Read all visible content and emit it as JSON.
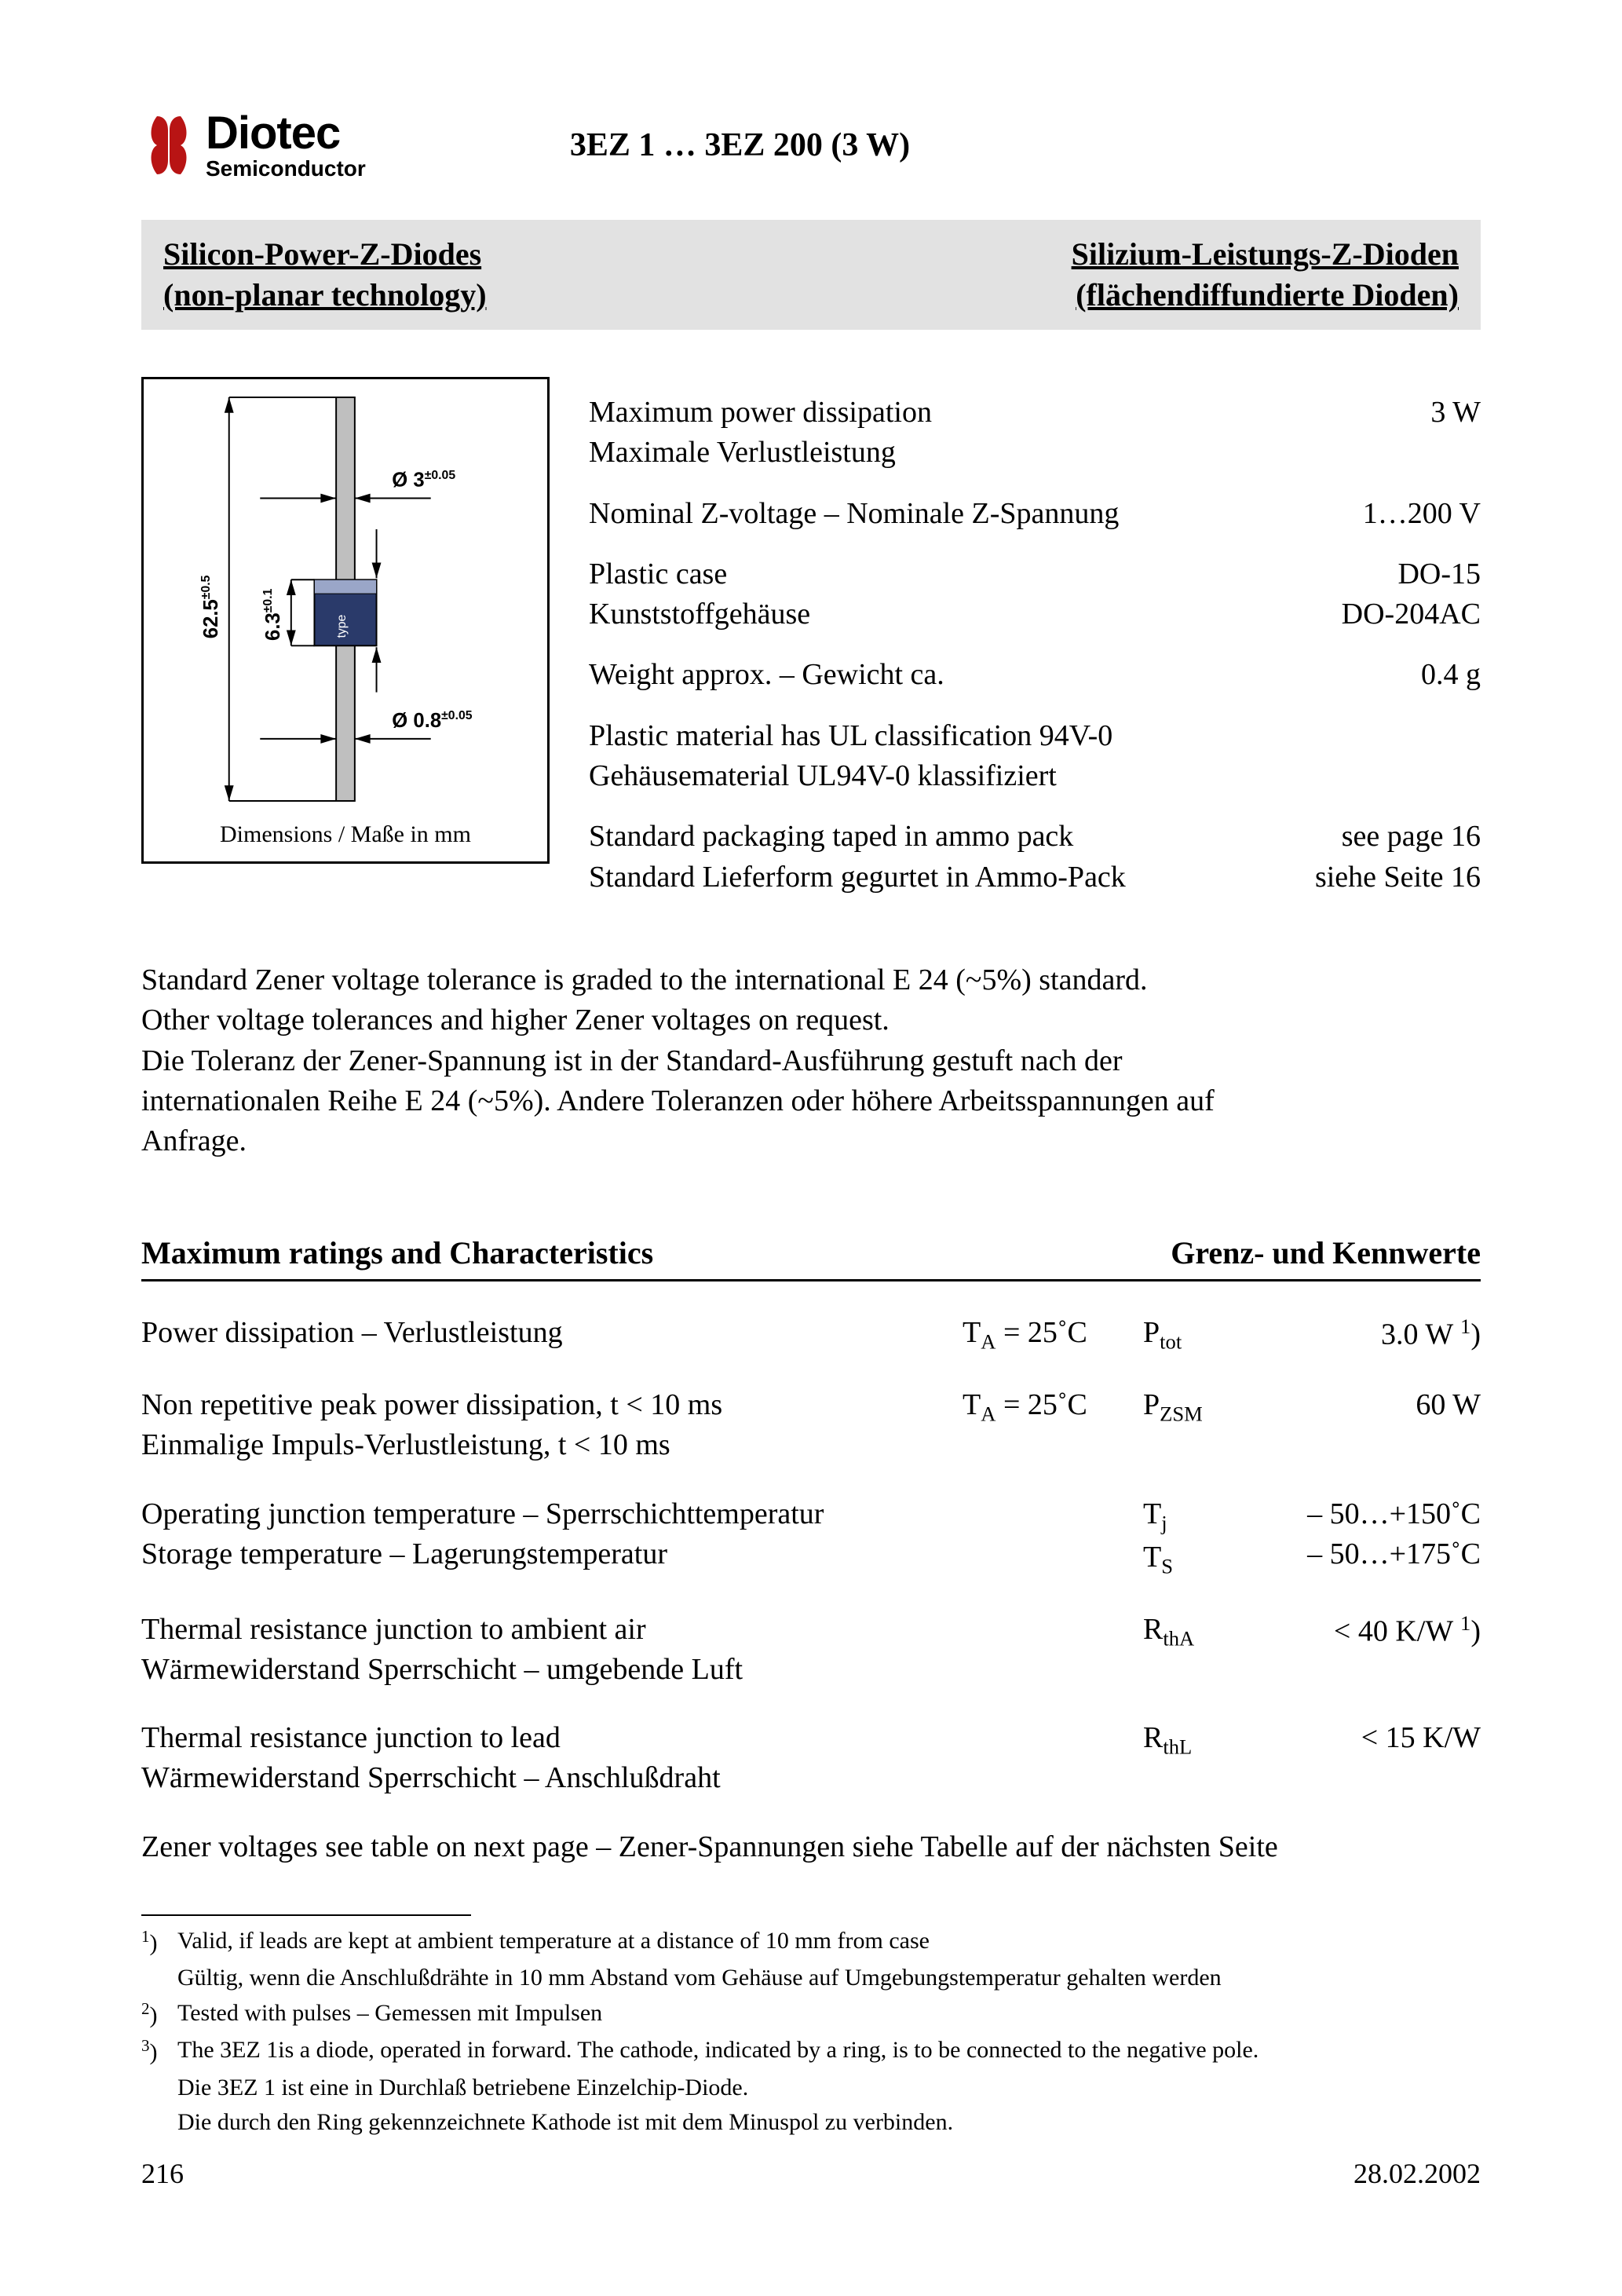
{
  "logo": {
    "name": "Diotec",
    "sub": "Semiconductor",
    "glyph_color": "#b81414"
  },
  "doc_title": "3EZ 1 … 3EZ 200 (3 W)",
  "gray_bar": {
    "left_line1": "Silicon-Power-Z-Diodes",
    "left_line2": "(non-planar technology)",
    "right_line1": "Silizium-Leistungs-Z-Dioden",
    "right_line2": "(flächendiffundierte Dioden)"
  },
  "dimensions": {
    "caption": "Dimensions / Maße in mm",
    "overall_length": "62.5",
    "overall_tol": "±0.5",
    "body_length": "6.3",
    "body_tol": "±0.1",
    "top_dia": "Ø 3",
    "top_tol": "±0.05",
    "lead_dia": "Ø 0.8",
    "lead_tol": "±0.05",
    "type_txt": "type"
  },
  "specs": [
    {
      "en": "Maximum power dissipation",
      "de": "Maximale Verlustleistung",
      "val": "3 W"
    },
    {
      "en": "Nominal Z-voltage – Nominale Z-Spannung",
      "de": "",
      "val": "1…200 V"
    },
    {
      "en": "Plastic case",
      "de": "Kunststoffgehäuse",
      "val_en": "DO-15",
      "val_de": "DO-204AC"
    },
    {
      "en": "Weight approx. – Gewicht ca.",
      "de": "",
      "val": "0.4 g"
    },
    {
      "en": "Plastic material has UL classification 94V-0",
      "de": "Gehäusematerial UL94V-0 klassifiziert",
      "val": ""
    },
    {
      "en": "Standard packaging taped in ammo pack",
      "de": "Standard Lieferform gegurtet in Ammo-Pack",
      "val_en": "see page 16",
      "val_de": "siehe Seite 16"
    }
  ],
  "tolerance_para": {
    "l1": "Standard Zener voltage tolerance is graded to the international E 24 (~5%) standard.",
    "l2": "Other voltage tolerances and higher Zener voltages on request.",
    "l3": "Die Toleranz der Zener-Spannung ist in der Standard-Ausführung gestuft nach der",
    "l4": "internationalen Reihe E 24 (~5%). Andere Toleranzen oder höhere Arbeitsspannungen auf",
    "l5": "Anfrage."
  },
  "ratings_header": {
    "left": "Maximum ratings and Characteristics",
    "right": "Grenz- und Kennwerte"
  },
  "ratings": [
    {
      "en": "Power dissipation – Verlustleistung",
      "de": "",
      "cond_html": "T<sub>A</sub> = 25˚C",
      "sym_html": "P<sub>tot</sub>",
      "val_html": "3.0 W <sup>1</sup>)"
    },
    {
      "en": "Non repetitive peak power dissipation, t < 10 ms",
      "de": "Einmalige Impuls-Verlustleistung, t < 10 ms",
      "cond_html": "T<sub>A</sub> = 25˚C",
      "sym_html": "P<sub>ZSM</sub>",
      "val_html": "60 W"
    },
    {
      "en": "Operating junction temperature – Sperrschichttemperatur",
      "de": "Storage temperature – Lagerungstemperatur",
      "cond_html": "",
      "sym_html": "T<sub>j</sub><br>T<sub>S</sub>",
      "val_html": "– 50…+150˚C<br>– 50…+175˚C"
    },
    {
      "en": "Thermal resistance junction to ambient air",
      "de": "Wärmewiderstand Sperrschicht – umgebende Luft",
      "cond_html": "",
      "sym_html": "R<sub>thA</sub>",
      "val_html": "< 40 K/W <sup>1</sup>)"
    },
    {
      "en": "Thermal resistance junction to lead",
      "de": "Wärmewiderstand Sperrschicht – Anschlußdraht",
      "cond_html": "",
      "sym_html": "R<sub>thL</sub>",
      "val_html": "< 15 K/W"
    }
  ],
  "note_ref": "Zener voltages see table on next page – Zener-Spannungen siehe Tabelle auf der nächsten Seite",
  "footnotes": [
    {
      "num": "1",
      "en": "Valid, if leads are kept at ambient temperature at a distance of 10 mm from case",
      "de": "Gültig, wenn die Anschlußdrähte in 10 mm Abstand vom Gehäuse auf Umgebungstemperatur gehalten werden"
    },
    {
      "num": "2",
      "en": "Tested with pulses – Gemessen mit Impulsen",
      "de": ""
    },
    {
      "num": "3",
      "en": "The 3EZ 1is a diode, operated in forward. The cathode, indicated by a ring, is to be connected to the negative pole.",
      "de": "Die 3EZ 1 ist eine in Durchlaß betriebene Einzelchip-Diode.",
      "de2": "Die durch den Ring gekennzeichnete Kathode ist mit dem Minuspol zu verbinden."
    }
  ],
  "page_footer": {
    "page": "216",
    "date": "28.02.2002"
  },
  "colors": {
    "gray_bar_bg": "#e2e2e2",
    "body_fill": "#2a3a6a",
    "lead_fill": "#bfbfbf"
  }
}
